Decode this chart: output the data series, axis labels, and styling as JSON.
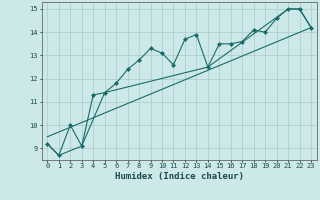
{
  "title": "",
  "xlabel": "Humidex (Indice chaleur)",
  "ylabel": "",
  "bg_color": "#cce8e8",
  "grid_color": "#aacccc",
  "line_color": "#1a6b6b",
  "marker_color": "#1a6b6b",
  "xlim": [
    -0.5,
    23.5
  ],
  "ylim": [
    8.5,
    15.3
  ],
  "yticks": [
    9,
    10,
    11,
    12,
    13,
    14,
    15
  ],
  "xticks": [
    0,
    1,
    2,
    3,
    4,
    5,
    6,
    7,
    8,
    9,
    10,
    11,
    12,
    13,
    14,
    15,
    16,
    17,
    18,
    19,
    20,
    21,
    22,
    23
  ],
  "series1_x": [
    0,
    1,
    2,
    3,
    4,
    5,
    6,
    7,
    8,
    9,
    10,
    11,
    12,
    13,
    14,
    15,
    16,
    17,
    18,
    19,
    20,
    21,
    22,
    23
  ],
  "series1_y": [
    9.2,
    8.7,
    10.0,
    9.1,
    11.3,
    11.4,
    11.8,
    12.4,
    12.8,
    13.3,
    13.1,
    12.6,
    13.7,
    13.9,
    12.5,
    13.5,
    13.5,
    13.6,
    14.1,
    14.0,
    14.6,
    15.0,
    15.0,
    14.2
  ],
  "series2_x": [
    0,
    23
  ],
  "series2_y": [
    9.5,
    14.2
  ],
  "series3_x": [
    0,
    1,
    3,
    5,
    14,
    21,
    22,
    23
  ],
  "series3_y": [
    9.2,
    8.7,
    9.1,
    11.4,
    12.5,
    15.0,
    15.0,
    14.2
  ]
}
